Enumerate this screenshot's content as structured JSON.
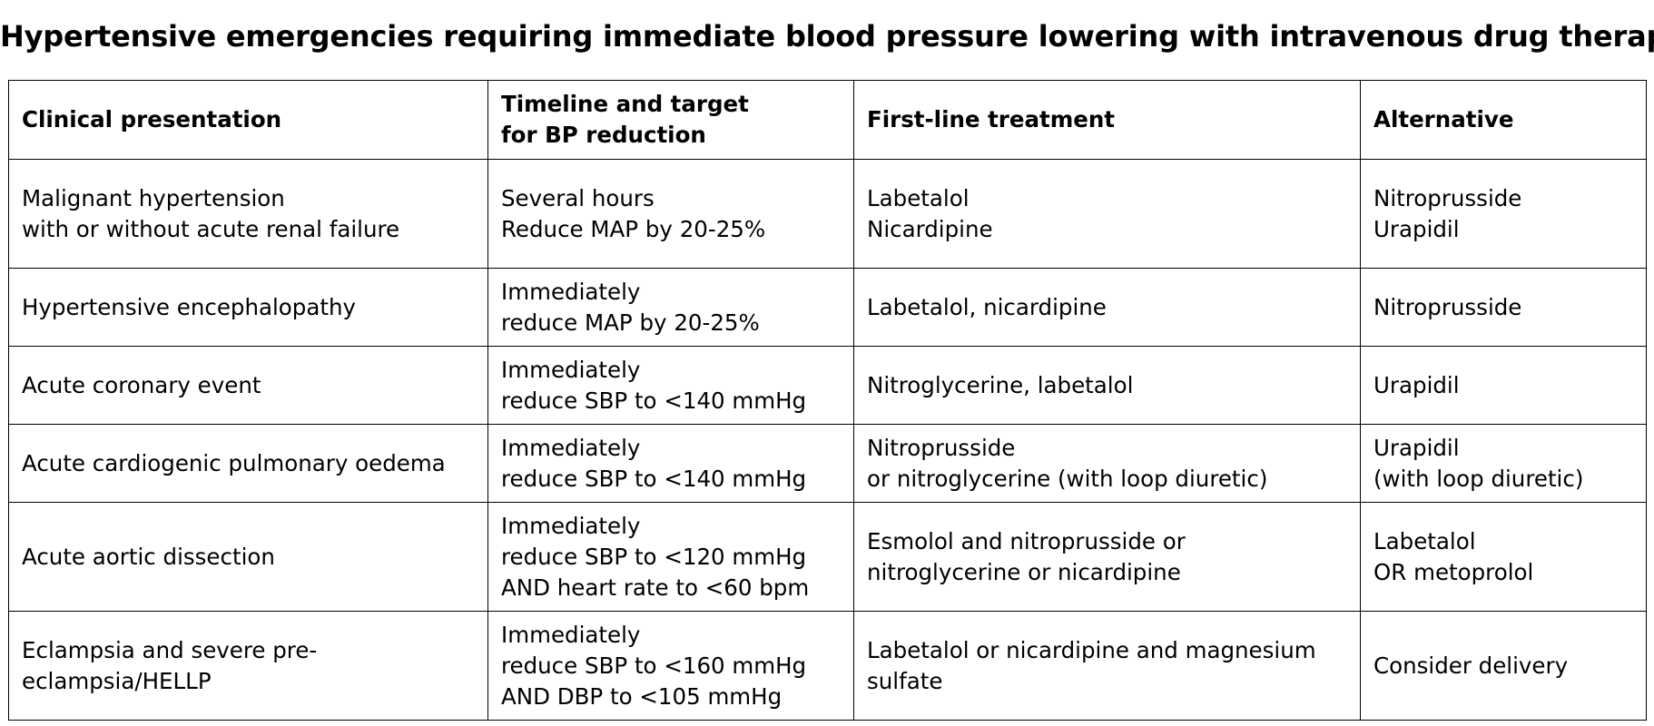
{
  "title": "Hypertensive emergencies requiring immediate blood pressure lowering with intravenous drug therapy",
  "table": {
    "headers": {
      "clinical": "Clinical presentation",
      "timeline": "Timeline and target\nfor BP reduction",
      "first_line": "First-line treatment",
      "alternative": "Alternative"
    },
    "rows": [
      {
        "clinical": "Malignant hypertension\nwith or without acute renal failure",
        "timeline": "Several hours\nReduce MAP by 20-25%",
        "first_line": "Labetalol\nNicardipine",
        "alternative": "Nitroprusside\nUrapidil"
      },
      {
        "clinical": "Hypertensive encephalopathy",
        "timeline": "Immediately\nreduce MAP by 20-25%",
        "first_line": "Labetalol, nicardipine",
        "alternative": "Nitroprusside"
      },
      {
        "clinical": "Acute coronary event",
        "timeline": "Immediately\nreduce SBP to <140 mmHg",
        "first_line": "Nitroglycerine, labetalol",
        "alternative": "Urapidil"
      },
      {
        "clinical": "Acute cardiogenic pulmonary oedema",
        "timeline": "Immediately\nreduce SBP to <140 mmHg",
        "first_line": "Nitroprusside\nor nitroglycerine (with loop diuretic)",
        "alternative": "Urapidil\n(with loop diuretic)"
      },
      {
        "clinical": "Acute aortic dissection",
        "timeline": "Immediately\nreduce SBP to <120 mmHg\nAND heart rate to <60 bpm",
        "first_line": "Esmolol and nitroprusside or\nnitroglycerine or nicardipine",
        "alternative": "Labetalol\nOR metoprolol"
      },
      {
        "clinical": "Eclampsia and severe pre-\neclampsia/HELLP",
        "timeline": "Immediately\nreduce SBP to <160 mmHg\nAND DBP to <105 mmHg",
        "first_line": "Labetalol or nicardipine and magnesium\nsulfate",
        "alternative": "Consider delivery"
      }
    ]
  }
}
